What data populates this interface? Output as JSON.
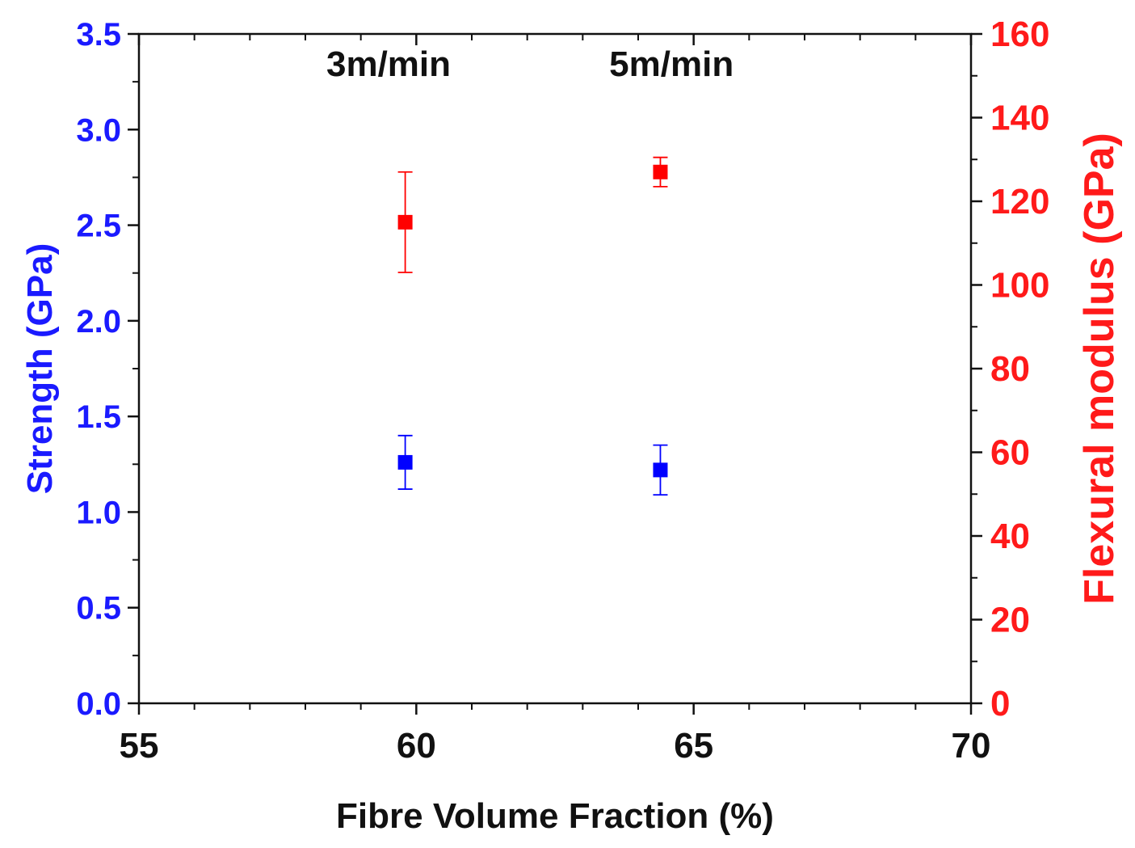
{
  "chart_data": {
    "type": "scatter",
    "title": "",
    "xlabel": "Fibre Volume Fraction (%)",
    "ylabel": "Strength (GPa)",
    "y2label": "Flexural modulus (GPa)",
    "xlim": [
      55,
      70
    ],
    "ylim": [
      0,
      3.5
    ],
    "y2lim": [
      0,
      160
    ],
    "x_ticks": [
      "55",
      "60",
      "65",
      "70"
    ],
    "y_ticks": [
      "0.0",
      "0.5",
      "1.0",
      "1.5",
      "2.0",
      "2.5",
      "3.0",
      "3.5"
    ],
    "y2_ticks": [
      "0",
      "20",
      "40",
      "60",
      "80",
      "100",
      "120",
      "140",
      "160"
    ],
    "grid": false,
    "series": [
      {
        "name": "Strength",
        "axis": "left",
        "color": "#0000ff",
        "marker": "square",
        "points": [
          {
            "x": 59.8,
            "y": 1.26,
            "err": 0.14
          },
          {
            "x": 64.4,
            "y": 1.22,
            "err": 0.13
          }
        ]
      },
      {
        "name": "Flexural modulus",
        "axis": "right",
        "color": "#ff0000",
        "marker": "square",
        "points": [
          {
            "x": 59.8,
            "y": 115,
            "err": 12
          },
          {
            "x": 64.4,
            "y": 127,
            "err": 3.5
          }
        ]
      }
    ],
    "annotations": [
      {
        "text": "3m/min",
        "x": 59.5,
        "y": 3.28
      },
      {
        "text": "5m/min",
        "x": 64.6,
        "y": 3.28
      }
    ]
  }
}
